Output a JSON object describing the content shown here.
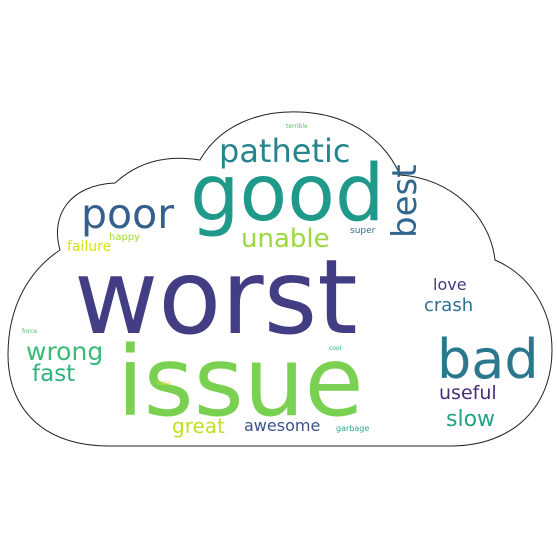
{
  "words": [
    {
      "id": "worst",
      "text": "worst",
      "color": "#433d84"
    },
    {
      "id": "issue",
      "text": "issue",
      "color": "#7ad151"
    },
    {
      "id": "good",
      "text": "good",
      "color": "#1f9a8a"
    },
    {
      "id": "bad",
      "text": "bad",
      "color": "#2a788e"
    },
    {
      "id": "poor",
      "text": "poor",
      "color": "#35608d"
    },
    {
      "id": "pathetic",
      "text": "pathetic",
      "color": "#25848e"
    },
    {
      "id": "best",
      "text": "best",
      "color": "#31678e"
    },
    {
      "id": "unable",
      "text": "unable",
      "color": "#9bd93c"
    },
    {
      "id": "wrong",
      "text": "wrong",
      "color": "#3aba76"
    },
    {
      "id": "fast",
      "text": "fast",
      "color": "#2fb47c"
    },
    {
      "id": "slow",
      "text": "slow",
      "color": "#20a486"
    },
    {
      "id": "useful",
      "text": "useful",
      "color": "#472d7b"
    },
    {
      "id": "crash",
      "text": "crash",
      "color": "#2d718e"
    },
    {
      "id": "love",
      "text": "love",
      "color": "#443983"
    },
    {
      "id": "great",
      "text": "great",
      "color": "#c2df23"
    },
    {
      "id": "awesome",
      "text": "awesome",
      "color": "#3b528b"
    },
    {
      "id": "failure",
      "text": "failure",
      "color": "#d8e219"
    },
    {
      "id": "happy",
      "text": "happy",
      "color": "#a2da37"
    },
    {
      "id": "super",
      "text": "super",
      "color": "#2c738e"
    },
    {
      "id": "garbage",
      "text": "garbage",
      "color": "#25ab82"
    },
    {
      "id": "cool",
      "text": "cool",
      "color": "#22a884"
    },
    {
      "id": "hate",
      "text": "hate",
      "color": "#dde318"
    },
    {
      "id": "force",
      "text": "force",
      "color": "#4ac16d"
    },
    {
      "id": "terrible",
      "text": "terrible",
      "color": "#52c569"
    }
  ],
  "outline_color": "#222222"
}
